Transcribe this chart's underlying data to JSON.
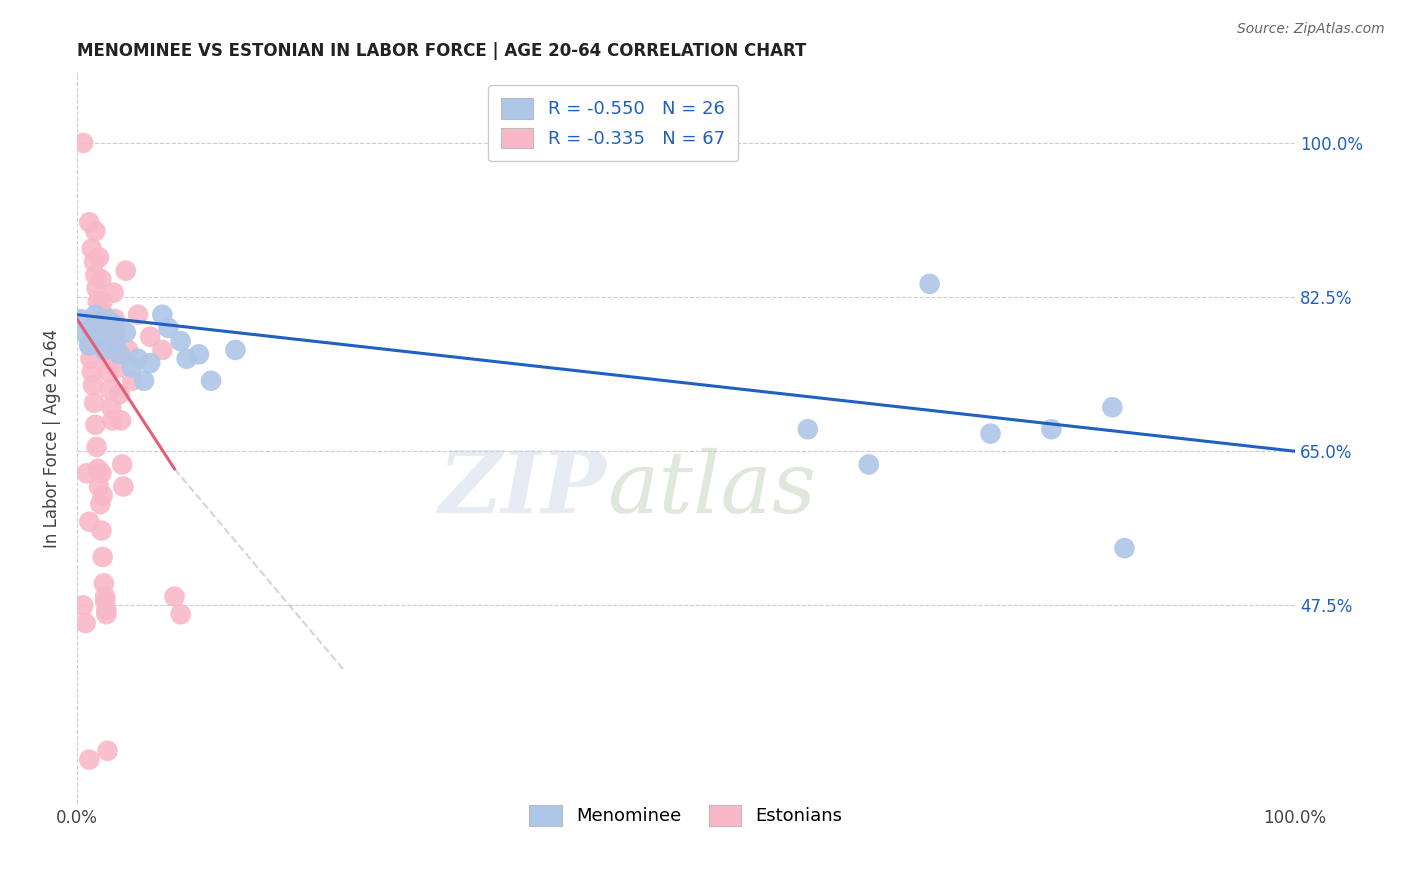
{
  "title": "MENOMINEE VS ESTONIAN IN LABOR FORCE | AGE 20-64 CORRELATION CHART",
  "source": "Source: ZipAtlas.com",
  "ylabel": "In Labor Force | Age 20-64",
  "ytick_vals": [
    47.5,
    65.0,
    82.5,
    100.0
  ],
  "ytick_labels": [
    "47.5%",
    "65.0%",
    "82.5%",
    "100.0%"
  ],
  "xrange": [
    0.0,
    100.0
  ],
  "yrange": [
    25.0,
    108.0
  ],
  "blue_color": "#aec6e8",
  "pink_color": "#f9b8c8",
  "blue_line_color": "#2060c0",
  "pink_line_color": "#e0607a",
  "pink_dash_color": "#d0b0bb",
  "menominee_points": [
    [
      0.3,
      80.0
    ],
    [
      0.5,
      78.5
    ],
    [
      1.0,
      77.0
    ],
    [
      1.2,
      79.0
    ],
    [
      1.5,
      80.5
    ],
    [
      2.0,
      78.0
    ],
    [
      2.2,
      76.5
    ],
    [
      2.5,
      80.0
    ],
    [
      3.0,
      79.5
    ],
    [
      3.2,
      77.5
    ],
    [
      3.5,
      76.0
    ],
    [
      4.0,
      78.5
    ],
    [
      4.5,
      74.5
    ],
    [
      5.0,
      75.5
    ],
    [
      5.5,
      73.0
    ],
    [
      6.0,
      75.0
    ],
    [
      7.0,
      80.5
    ],
    [
      7.5,
      79.0
    ],
    [
      8.5,
      77.5
    ],
    [
      9.0,
      75.5
    ],
    [
      10.0,
      76.0
    ],
    [
      11.0,
      73.0
    ],
    [
      13.0,
      76.5
    ],
    [
      60.0,
      67.5
    ],
    [
      65.0,
      63.5
    ],
    [
      70.0,
      84.0
    ],
    [
      75.0,
      67.0
    ],
    [
      80.0,
      67.5
    ],
    [
      85.0,
      70.0
    ],
    [
      86.0,
      54.0
    ]
  ],
  "estonian_points": [
    [
      0.5,
      100.0
    ],
    [
      1.0,
      91.0
    ],
    [
      1.2,
      88.0
    ],
    [
      1.4,
      86.5
    ],
    [
      1.5,
      85.0
    ],
    [
      1.6,
      83.5
    ],
    [
      1.7,
      82.0
    ],
    [
      1.8,
      80.5
    ],
    [
      1.9,
      79.0
    ],
    [
      2.0,
      84.5
    ],
    [
      2.1,
      82.0
    ],
    [
      2.2,
      80.5
    ],
    [
      2.3,
      79.0
    ],
    [
      2.4,
      77.5
    ],
    [
      2.5,
      75.5
    ],
    [
      2.6,
      74.0
    ],
    [
      2.7,
      72.0
    ],
    [
      2.8,
      70.0
    ],
    [
      2.9,
      68.5
    ],
    [
      3.0,
      83.0
    ],
    [
      3.1,
      80.0
    ],
    [
      3.2,
      78.5
    ],
    [
      3.3,
      76.5
    ],
    [
      3.4,
      74.5
    ],
    [
      3.5,
      71.5
    ],
    [
      3.6,
      68.5
    ],
    [
      3.7,
      63.5
    ],
    [
      3.8,
      61.0
    ],
    [
      4.0,
      85.5
    ],
    [
      4.2,
      76.5
    ],
    [
      4.5,
      73.0
    ],
    [
      5.0,
      80.5
    ],
    [
      6.0,
      78.0
    ],
    [
      7.0,
      76.5
    ],
    [
      1.0,
      77.0
    ],
    [
      1.1,
      75.5
    ],
    [
      1.2,
      74.0
    ],
    [
      1.3,
      72.5
    ],
    [
      1.4,
      70.5
    ],
    [
      1.5,
      68.0
    ],
    [
      1.6,
      65.5
    ],
    [
      1.7,
      63.0
    ],
    [
      1.8,
      61.0
    ],
    [
      1.9,
      59.0
    ],
    [
      2.0,
      56.0
    ],
    [
      2.1,
      53.0
    ],
    [
      2.2,
      50.0
    ],
    [
      2.3,
      48.0
    ],
    [
      2.4,
      46.5
    ],
    [
      2.0,
      62.5
    ],
    [
      2.1,
      60.0
    ],
    [
      2.3,
      48.5
    ],
    [
      2.4,
      47.0
    ],
    [
      2.5,
      31.0
    ],
    [
      0.8,
      62.5
    ],
    [
      1.0,
      57.0
    ],
    [
      8.0,
      48.5
    ],
    [
      8.5,
      46.5
    ],
    [
      1.5,
      90.0
    ],
    [
      1.8,
      87.0
    ],
    [
      0.5,
      47.5
    ],
    [
      0.7,
      45.5
    ],
    [
      1.0,
      30.0
    ]
  ],
  "blue_line": {
    "x0": 0.0,
    "y0": 80.5,
    "x1": 100.0,
    "y1": 65.0
  },
  "pink_line_solid": {
    "x0": 0.0,
    "y0": 80.0,
    "x1": 8.0,
    "y1": 63.0
  },
  "pink_line_dash": {
    "x0": 8.0,
    "y0": 63.0,
    "x1": 22.0,
    "y1": 40.0
  }
}
